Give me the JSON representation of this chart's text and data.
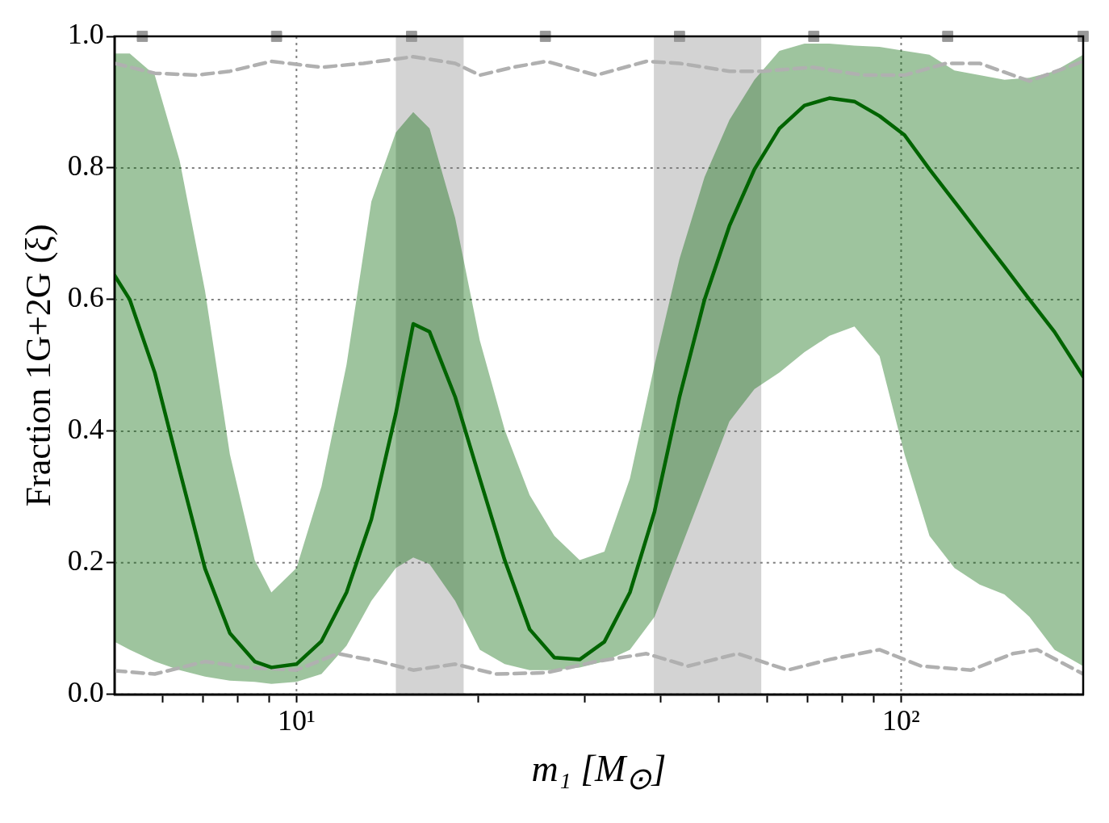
{
  "chart_data": {
    "type": "line",
    "xlabel": "m₁ [M$_{⊙}$]",
    "ylabel": "Fraction 1G+2G (ξ)",
    "log": "x",
    "grid": true,
    "xlim": [
      5,
      200
    ],
    "ylim": [
      0,
      1
    ],
    "xticks": [
      {
        "value": 6,
        "label": null
      },
      {
        "value": 7,
        "label": null
      },
      {
        "value": 8,
        "label": null
      },
      {
        "value": 9,
        "label": null
      },
      {
        "value": 10,
        "label": "10¹"
      },
      {
        "value": 20,
        "label": null
      },
      {
        "value": 30,
        "label": null
      },
      {
        "value": 40,
        "label": null
      },
      {
        "value": 50,
        "label": null
      },
      {
        "value": 60,
        "label": null
      },
      {
        "value": 70,
        "label": null
      },
      {
        "value": 80,
        "label": null
      },
      {
        "value": 90,
        "label": null
      },
      {
        "value": 100,
        "label": "10²"
      }
    ],
    "yticks": [
      {
        "value": 0,
        "label": "0.0"
      },
      {
        "value": 0.2,
        "label": "0.2"
      },
      {
        "value": 0.4,
        "label": "0.4"
      },
      {
        "value": 0.6,
        "label": "0.6"
      },
      {
        "value": 0.8,
        "label": "0.8"
      },
      {
        "value": 1,
        "label": "1.0"
      }
    ],
    "x": [
      5.0,
      5.3,
      5.83,
      6.41,
      7.06,
      7.76,
      8.53,
      9.09,
      10,
      11.0,
      12.1,
      13.3,
      14.6,
      15.6,
      16.6,
      18.3,
      20.1,
      22.1,
      24.3,
      26.7,
      29.4,
      32.3,
      35.6,
      39.1,
      43.0,
      47.3,
      52.0,
      57.2,
      62.9,
      69.2,
      76.1,
      83.7,
      92.1,
      101.3,
      111.4,
      122.5,
      134.8,
      148.2,
      163,
      179.3,
      200
    ],
    "bands": [
      {
        "axis": "x",
        "from": 14.6,
        "to": 18.9,
        "color": "#d3d3d3"
      },
      {
        "axis": "x",
        "from": 39.0,
        "to": 58.7,
        "color": "#d3d3d3"
      }
    ],
    "series": [
      {
        "color": "#006400",
        "values": [
          0.637,
          0.6,
          0.489,
          0.34,
          0.191,
          0.093,
          0.05,
          0.041,
          0.046,
          0.081,
          0.155,
          0.266,
          0.427,
          0.563,
          0.551,
          0.452,
          0.328,
          0.204,
          0.099,
          0.056,
          0.053,
          0.08,
          0.155,
          0.278,
          0.452,
          0.6,
          0.712,
          0.798,
          0.86,
          0.895,
          0.906,
          0.901,
          0.879,
          0.85,
          0.798,
          0.749,
          0.699,
          0.65,
          0.6,
          0.551,
          0.483
        ],
        "upper": [
          0.974,
          0.974,
          0.941,
          0.811,
          0.613,
          0.365,
          0.204,
          0.155,
          0.192,
          0.316,
          0.501,
          0.749,
          0.854,
          0.885,
          0.86,
          0.724,
          0.538,
          0.402,
          0.303,
          0.241,
          0.204,
          0.217,
          0.328,
          0.501,
          0.662,
          0.786,
          0.873,
          0.934,
          0.978,
          0.989,
          0.989,
          0.986,
          0.984,
          0.978,
          0.972,
          0.948,
          0.941,
          0.934,
          0.937,
          0.947,
          0.972
        ],
        "lower": [
          0.08,
          0.068,
          0.05,
          0.037,
          0.027,
          0.021,
          0.019,
          0.016,
          0.019,
          0.031,
          0.074,
          0.142,
          0.192,
          0.208,
          0.198,
          0.142,
          0.068,
          0.046,
          0.037,
          0.037,
          0.041,
          0.05,
          0.068,
          0.118,
          0.217,
          0.316,
          0.415,
          0.464,
          0.489,
          0.52,
          0.545,
          0.559,
          0.514,
          0.365,
          0.241,
          0.192,
          0.167,
          0.152,
          0.118,
          0.068,
          0.043
        ]
      },
      {
        "color": "#b0b0b0",
        "line_style": "dashed",
        "x": [
          5.0,
          5.83,
          6.83,
          7.76,
          9.09,
          11.0,
          12.9,
          15.6,
          18.3,
          20.1,
          22.8,
          25.9,
          31.3,
          37.9,
          43.0,
          52.0,
          59.0,
          71.4,
          86.5,
          101.3,
          118.7,
          134.8,
          163,
          200
        ],
        "values": [
          0.959,
          0.944,
          0.941,
          0.947,
          0.962,
          0.953,
          0.959,
          0.969,
          0.959,
          0.941,
          0.953,
          0.962,
          0.941,
          0.962,
          0.959,
          0.947,
          0.947,
          0.953,
          0.941,
          0.941,
          0.959,
          0.959,
          0.932,
          0.962
        ]
      },
      {
        "color": "#b0b0b0",
        "line_style": "dashed",
        "x": [
          5.0,
          5.83,
          7.06,
          8.27,
          10,
          11.7,
          13.7,
          15.6,
          18.3,
          21.4,
          25.9,
          31.3,
          37.9,
          44.4,
          53.7,
          64.9,
          76.1,
          92.1,
          107.9,
          130.5,
          153,
          168,
          200
        ],
        "values": [
          0.036,
          0.031,
          0.05,
          0.041,
          0.037,
          0.062,
          0.05,
          0.037,
          0.046,
          0.031,
          0.033,
          0.05,
          0.062,
          0.043,
          0.062,
          0.037,
          0.053,
          0.068,
          0.043,
          0.037,
          0.062,
          0.068,
          0.031
        ]
      },
      {
        "type": "scatter",
        "color": "#999999",
        "marker": "square",
        "x": [
          5.56,
          9.27,
          15.5,
          25.8,
          43.0,
          71.7,
          119.4,
          200
        ],
        "values": [
          1,
          1,
          1,
          1,
          1,
          1,
          1,
          1
        ]
      }
    ]
  }
}
